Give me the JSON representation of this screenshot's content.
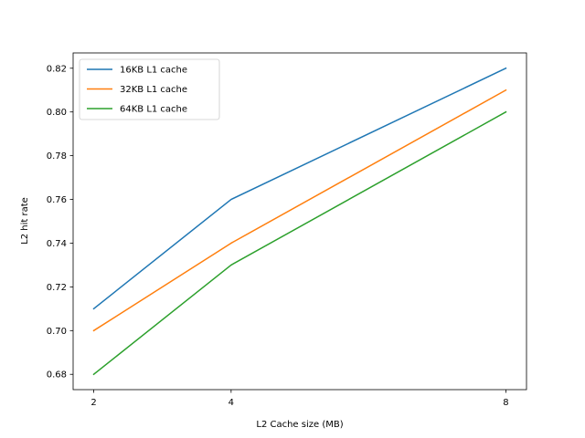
{
  "chart_data": {
    "type": "line",
    "title": "",
    "xlabel": "L2 Cache size (MB)",
    "ylabel": "L2 hit rate",
    "x": [
      2,
      4,
      8
    ],
    "xticks": [
      2,
      4,
      8
    ],
    "xlim": [
      1.7,
      8.3
    ],
    "yticks": [
      0.68,
      0.7,
      0.72,
      0.74,
      0.76,
      0.78,
      0.8,
      0.82
    ],
    "ytick_labels": [
      "0.68",
      "0.70",
      "0.72",
      "0.74",
      "0.76",
      "0.78",
      "0.80",
      "0.82"
    ],
    "ylim": [
      0.673,
      0.827
    ],
    "grid": false,
    "legend": "upper-left",
    "series": [
      {
        "name": "16KB L1 cache",
        "values": [
          0.71,
          0.76,
          0.82
        ],
        "color": "#1f77b4"
      },
      {
        "name": "32KB L1 cache",
        "values": [
          0.7,
          0.74,
          0.81
        ],
        "color": "#ff7f0e"
      },
      {
        "name": "64KB L1 cache",
        "values": [
          0.68,
          0.73,
          0.8
        ],
        "color": "#2ca02c"
      }
    ]
  }
}
